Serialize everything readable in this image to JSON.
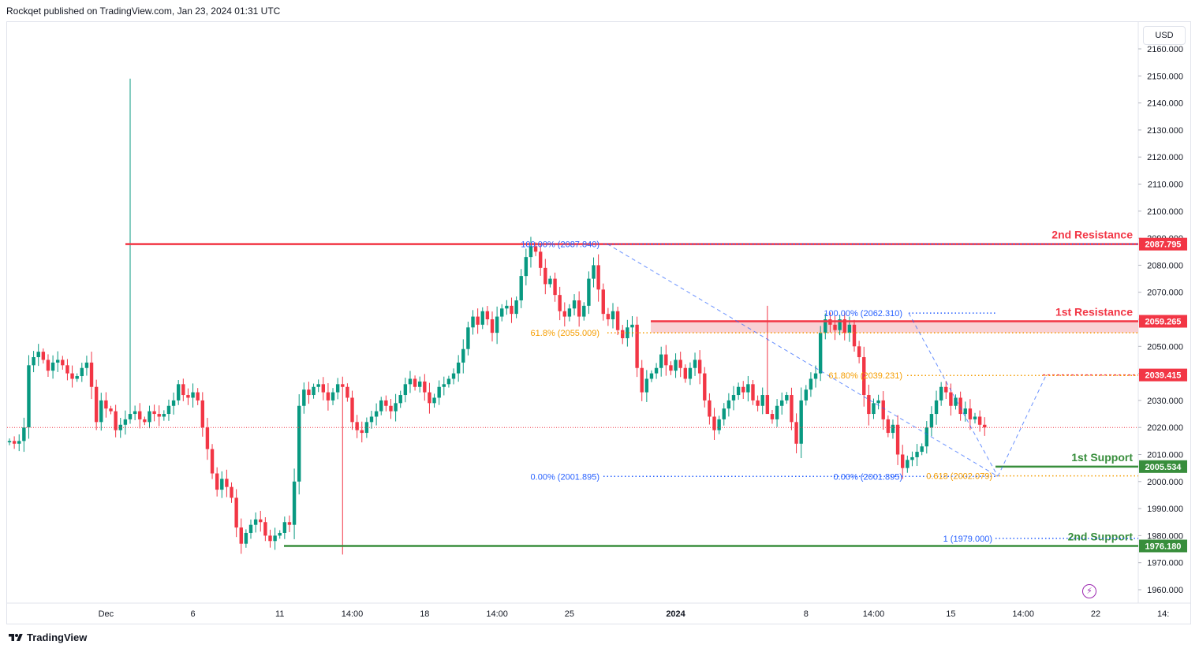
{
  "header": {
    "published": "Rockqet published on TradingView.com, Jan 23, 2024 01:31 UTC"
  },
  "footer": {
    "brand": "TradingView"
  },
  "toolbar": {
    "currency": "USD",
    "flash_symbol": "⚡"
  },
  "colors": {
    "up": "#089981",
    "down": "#f23645",
    "resistance": "#f23645",
    "support": "#388e3c",
    "fib_blue": "#2962ff",
    "fib_orange": "#f59d00",
    "zone": "#f7c6c9"
  },
  "chart_data": {
    "type": "candlestick",
    "ylim": [
      1952,
      2166
    ],
    "y_ticks": [
      1960,
      1970,
      1980,
      1990,
      2000,
      2010,
      2020,
      2030,
      2040,
      2050,
      2060,
      2070,
      2080,
      2090,
      2100,
      2110,
      2120,
      2130,
      2140,
      2150,
      2160
    ],
    "y_tick_labels": [
      "1960.000",
      "1970.000",
      "1980.000",
      "1990.000",
      "2000.000",
      "2010.000",
      "2020.000",
      "2030.000",
      "2040.000",
      "2050.000",
      "2060.000",
      "2070.000",
      "2080.000",
      "2090.000",
      "2100.000",
      "2110.000",
      "2120.000",
      "2130.000",
      "2140.000",
      "2150.000",
      "2160.000"
    ],
    "x_labels": [
      {
        "label": "Dec",
        "bar": 20
      },
      {
        "label": "6",
        "bar": 38
      },
      {
        "label": "11",
        "bar": 56
      },
      {
        "label": "14:00",
        "bar": 71
      },
      {
        "label": "18",
        "bar": 86
      },
      {
        "label": "14:00",
        "bar": 101
      },
      {
        "label": "25",
        "bar": 116
      },
      {
        "label": "2024",
        "bar": 138,
        "bold": true
      },
      {
        "label": "8",
        "bar": 165
      },
      {
        "label": "14:00",
        "bar": 179
      },
      {
        "label": "15",
        "bar": 195
      },
      {
        "label": "14:00",
        "bar": 210
      },
      {
        "label": "22",
        "bar": 225
      },
      {
        "label": "14:",
        "bar": 239
      }
    ],
    "levels": [
      {
        "name": "2nd Resistance",
        "value": 2087.795,
        "label": "2087.795",
        "type": "resistance"
      },
      {
        "name": "1st Resistance",
        "value": 2059.265,
        "label": "2059.265",
        "type": "resistance"
      },
      {
        "name": "",
        "value": 2039.415,
        "label": "2039.415",
        "type": "resistance"
      },
      {
        "name": "1st Support",
        "value": 2005.534,
        "label": "2005.534",
        "type": "support"
      },
      {
        "name": "2nd Support",
        "value": 1976.18,
        "label": "1976.180",
        "type": "support"
      }
    ],
    "fib_labels": [
      {
        "text": "100.00% (2087.840)",
        "value": 2087.84,
        "color": "blue"
      },
      {
        "text": "61.8% (2055.009)",
        "value": 2055.009,
        "color": "orange"
      },
      {
        "text": "0.00% (2001.895)",
        "value": 2001.895,
        "color": "blue"
      },
      {
        "text": "100.00% (2062.310)",
        "value": 2062.31,
        "color": "blue"
      },
      {
        "text": "61.80% (2039.231)",
        "value": 2039.231,
        "color": "orange"
      },
      {
        "text": "0.00% (2001.895)",
        "value": 2001.895,
        "color": "blue"
      },
      {
        "text": "0.618 (2002.079)",
        "value": 2002.079,
        "color": "orange"
      },
      {
        "text": "1 (1979.000)",
        "value": 1979.0,
        "color": "blue"
      }
    ],
    "current_price": 2020.0,
    "closes": [
      2015,
      2014,
      2015,
      2020,
      2043,
      2046,
      2048,
      2045,
      2041,
      2044,
      2045,
      2043,
      2040,
      2038,
      2039,
      2042,
      2044,
      2035,
      2022,
      2030,
      2027,
      2026,
      2019,
      2021,
      2023,
      2025,
      2026,
      2023,
      2022,
      2026,
      2025,
      2024,
      2025,
      2028,
      2030,
      2036,
      2032,
      2031,
      2033,
      2030,
      2020,
      2012,
      2003,
      1997,
      2001,
      1998,
      1994,
      1983,
      1977,
      1981,
      1984,
      1986,
      1985,
      1980,
      1978,
      1980,
      1981,
      1985,
      1984,
      2000,
      2028,
      2034,
      2032,
      2035,
      2036,
      2033,
      2030,
      2033,
      2036,
      2035,
      2031,
      2022,
      2019,
      2018,
      2022,
      2024,
      2026,
      2030,
      2028,
      2026,
      2029,
      2032,
      2036,
      2038,
      2035,
      2037,
      2033,
      2029,
      2031,
      2035,
      2036,
      2038,
      2040,
      2044,
      2049,
      2057,
      2061,
      2058,
      2063,
      2060,
      2055,
      2061,
      2064,
      2065,
      2062,
      2067,
      2076,
      2083,
      2087,
      2085,
      2079,
      2073,
      2075,
      2069,
      2063,
      2061,
      2064,
      2067,
      2061,
      2065,
      2075,
      2080,
      2071,
      2062,
      2060,
      2063,
      2056,
      2053,
      2057,
      2058,
      2042,
      2033,
      2038,
      2040,
      2042,
      2047,
      2043,
      2041,
      2045,
      2042,
      2038,
      2042,
      2045,
      2040,
      2030,
      2024,
      2019,
      2023,
      2027,
      2030,
      2032,
      2035,
      2033,
      2036,
      2030,
      2028,
      2032,
      2025,
      2023,
      2028,
      2030,
      2032,
      2022,
      2014,
      2030,
      2034,
      2038,
      2040,
      2055,
      2060,
      2058,
      2056,
      2060,
      2055,
      2058,
      2050,
      2046,
      2032,
      2025,
      2029,
      2030,
      2023,
      2018,
      2021,
      2010,
      2005,
      2008,
      2009,
      2011,
      2013,
      2020,
      2025,
      2030,
      2035,
      2033,
      2028,
      2031,
      2025,
      2027,
      2023,
      2024,
      2021,
      2020
    ]
  }
}
